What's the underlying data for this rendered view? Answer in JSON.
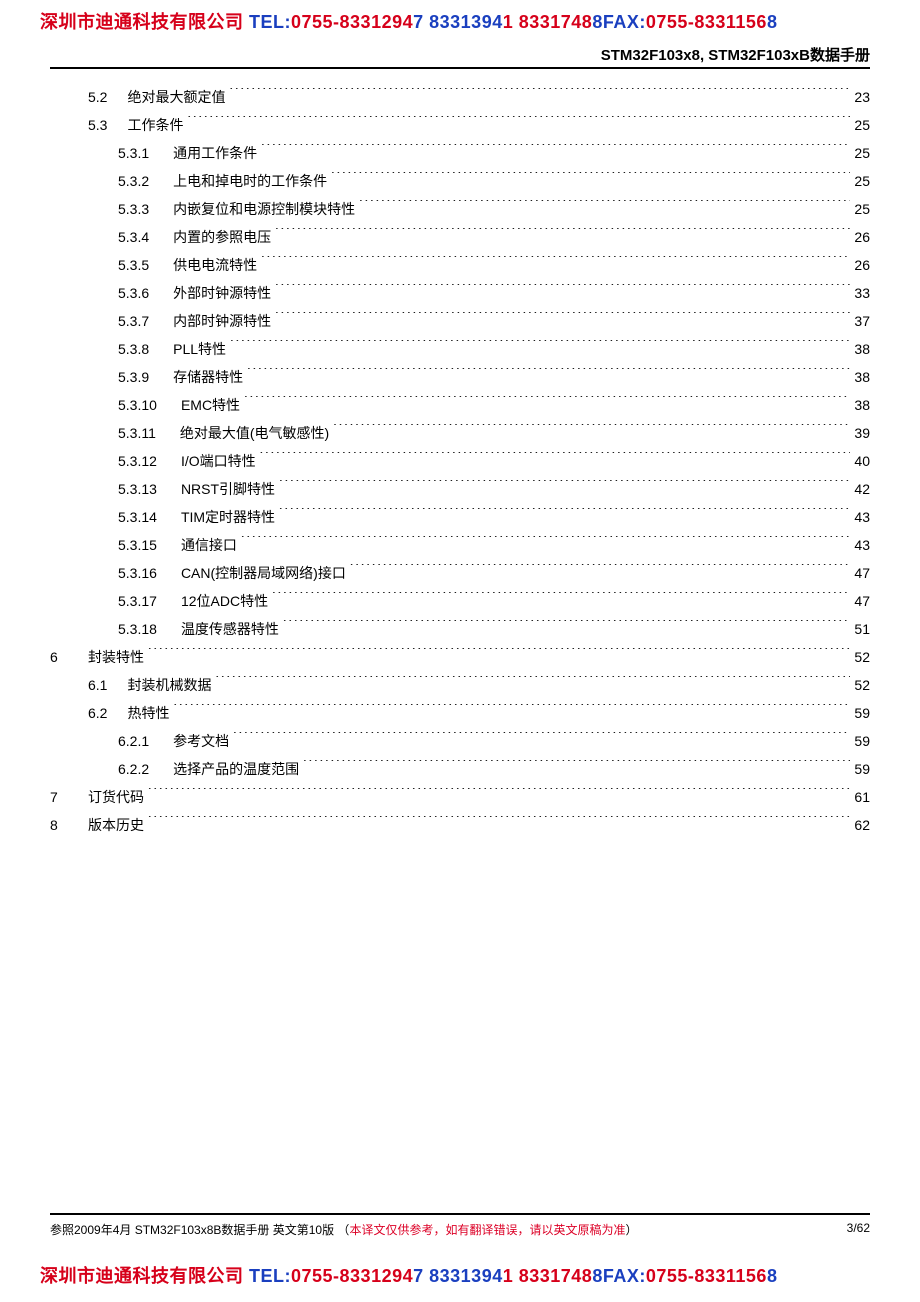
{
  "banner": {
    "company": "深圳市迪通科技有限公司",
    "tel_label": " TEL:",
    "tel1": "0755-8331294",
    "tel2": "7 8331394",
    "tel3": "1  8331748",
    "fax_label": "8FAX:",
    "fax": "0755-8331156",
    "tail": "8"
  },
  "header": "STM32F103x8, STM32F103xB数据手册",
  "toc": [
    {
      "level": 2,
      "num": "5.2",
      "title": "绝对最大额定值",
      "page": "23"
    },
    {
      "level": 2,
      "num": "5.3",
      "title": "工作条件",
      "page": "25"
    },
    {
      "level": 3,
      "num": "5.3.1",
      "title": "通用工作条件",
      "page": "25"
    },
    {
      "level": 3,
      "num": "5.3.2",
      "title": "上电和掉电时的工作条件",
      "page": "25"
    },
    {
      "level": 3,
      "num": "5.3.3",
      "title": "内嵌复位和电源控制模块特性",
      "page": "25"
    },
    {
      "level": 3,
      "num": "5.3.4",
      "title": "内置的参照电压",
      "page": "26"
    },
    {
      "level": 3,
      "num": "5.3.5",
      "title": "供电电流特性",
      "page": "26"
    },
    {
      "level": 3,
      "num": "5.3.6",
      "title": "外部时钟源特性",
      "page": "33"
    },
    {
      "level": 3,
      "num": "5.3.7",
      "title": "内部时钟源特性",
      "page": "37"
    },
    {
      "level": 3,
      "num": "5.3.8",
      "title": "PLL特性",
      "page": "38"
    },
    {
      "level": 3,
      "num": "5.3.9",
      "title": "存储器特性",
      "page": "38"
    },
    {
      "level": 3,
      "num": "5.3.10",
      "title": "EMC特性",
      "page": "38"
    },
    {
      "level": 3,
      "num": "5.3.11",
      "title": "绝对最大值(电气敏感性)",
      "page": "39"
    },
    {
      "level": 3,
      "num": "5.3.12",
      "title": "I/O端口特性",
      "page": "40"
    },
    {
      "level": 3,
      "num": "5.3.13",
      "title": "NRST引脚特性",
      "page": "42"
    },
    {
      "level": 3,
      "num": "5.3.14",
      "title": "TIM定时器特性",
      "page": "43"
    },
    {
      "level": 3,
      "num": "5.3.15",
      "title": "通信接口",
      "page": "43"
    },
    {
      "level": 3,
      "num": "5.3.16",
      "title": "CAN(控制器局域网络)接口",
      "page": "47"
    },
    {
      "level": 3,
      "num": "5.3.17",
      "title": "12位ADC特性",
      "page": "47"
    },
    {
      "level": 3,
      "num": "5.3.18",
      "title": "温度传感器特性",
      "page": "51"
    },
    {
      "level": 1,
      "num": "6",
      "title": "封装特性",
      "page": "52"
    },
    {
      "level": 2,
      "num": "6.1",
      "title": "封装机械数据",
      "page": "52"
    },
    {
      "level": 2,
      "num": "6.2",
      "title": "热特性",
      "page": "59"
    },
    {
      "level": 3,
      "num": "6.2.1",
      "title": "参考文档",
      "page": "59"
    },
    {
      "level": 3,
      "num": "6.2.2",
      "title": "选择产品的温度范围",
      "page": "59"
    },
    {
      "level": 1,
      "num": "7",
      "title": "订货代码",
      "page": "61"
    },
    {
      "level": 1,
      "num": "8",
      "title": "版本历史",
      "page": "62"
    }
  ],
  "footer": {
    "left": "参照2009年4月 STM32F103x8B数据手册 英文第10版  （",
    "note": "本译文仅供参考，如有翻译错误，请以英文原稿为准",
    "close": "）",
    "page": "3/62"
  }
}
